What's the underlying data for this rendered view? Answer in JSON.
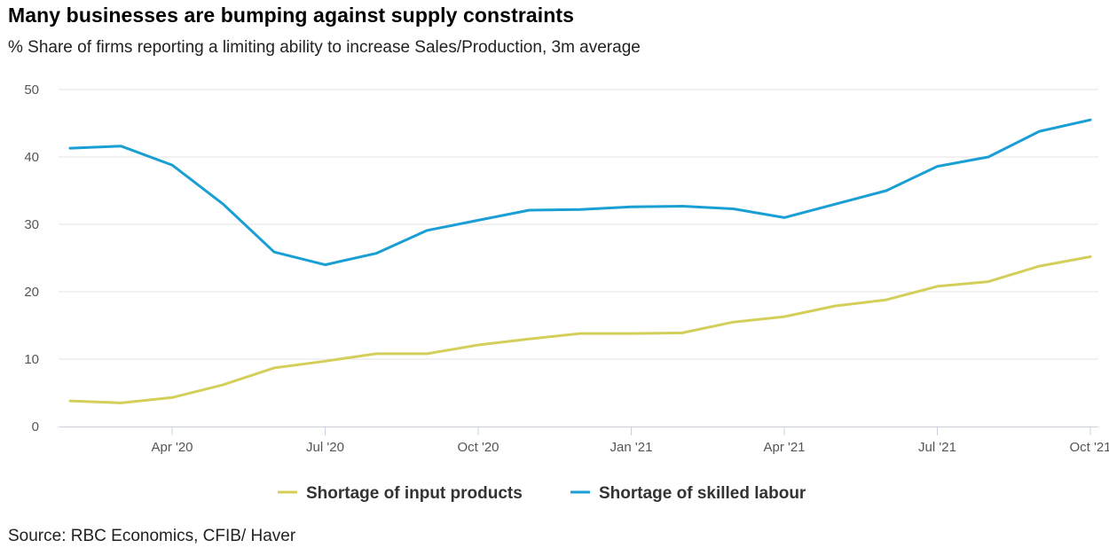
{
  "chart_data": {
    "type": "line",
    "title": "Many businesses are bumping against supply constraints",
    "subtitle": "% Share of firms reporting a limiting ability to increase Sales/Production, 3m average",
    "source": "Source: RBC Economics, CFIB/ Haver",
    "xlabel": "",
    "ylabel": "",
    "ylim": [
      0,
      50
    ],
    "yticks": [
      "0",
      "10",
      "20",
      "30",
      "40",
      "50"
    ],
    "x": [
      "Feb '20",
      "Mar '20",
      "Apr '20",
      "May '20",
      "Jun '20",
      "Jul '20",
      "Aug '20",
      "Sep '20",
      "Oct '20",
      "Nov '20",
      "Dec '20",
      "Jan '21",
      "Feb '21",
      "Mar '21",
      "Apr '21",
      "May '21",
      "Jun '21",
      "Jul '21",
      "Aug '21",
      "Sep '21",
      "Oct '21"
    ],
    "xticks": [
      {
        "index": 2,
        "label": "Apr '20"
      },
      {
        "index": 5,
        "label": "Jul '20"
      },
      {
        "index": 8,
        "label": "Oct '20"
      },
      {
        "index": 11,
        "label": "Jan '21"
      },
      {
        "index": 14,
        "label": "Apr '21"
      },
      {
        "index": 17,
        "label": "Jul '21"
      },
      {
        "index": 20,
        "label": "Oct '21"
      }
    ],
    "grid": true,
    "legend_position": "bottom-center",
    "series": [
      {
        "name": "Shortage of input products",
        "color": "#d4cf5a",
        "values": [
          3.8,
          3.5,
          4.3,
          6.2,
          8.7,
          9.7,
          10.8,
          10.8,
          12.1,
          13.0,
          13.8,
          13.8,
          13.9,
          15.5,
          16.3,
          17.9,
          18.8,
          20.8,
          21.5,
          23.8,
          25.2
        ]
      },
      {
        "name": "Shortage of skilled labour",
        "color": "#1a9fd4",
        "values": [
          41.3,
          41.6,
          38.8,
          33.0,
          25.9,
          24.0,
          25.7,
          29.1,
          30.6,
          32.1,
          32.2,
          32.6,
          32.7,
          32.3,
          31.0,
          33.0,
          35.0,
          38.6,
          40.0,
          43.8,
          45.5
        ]
      }
    ]
  }
}
